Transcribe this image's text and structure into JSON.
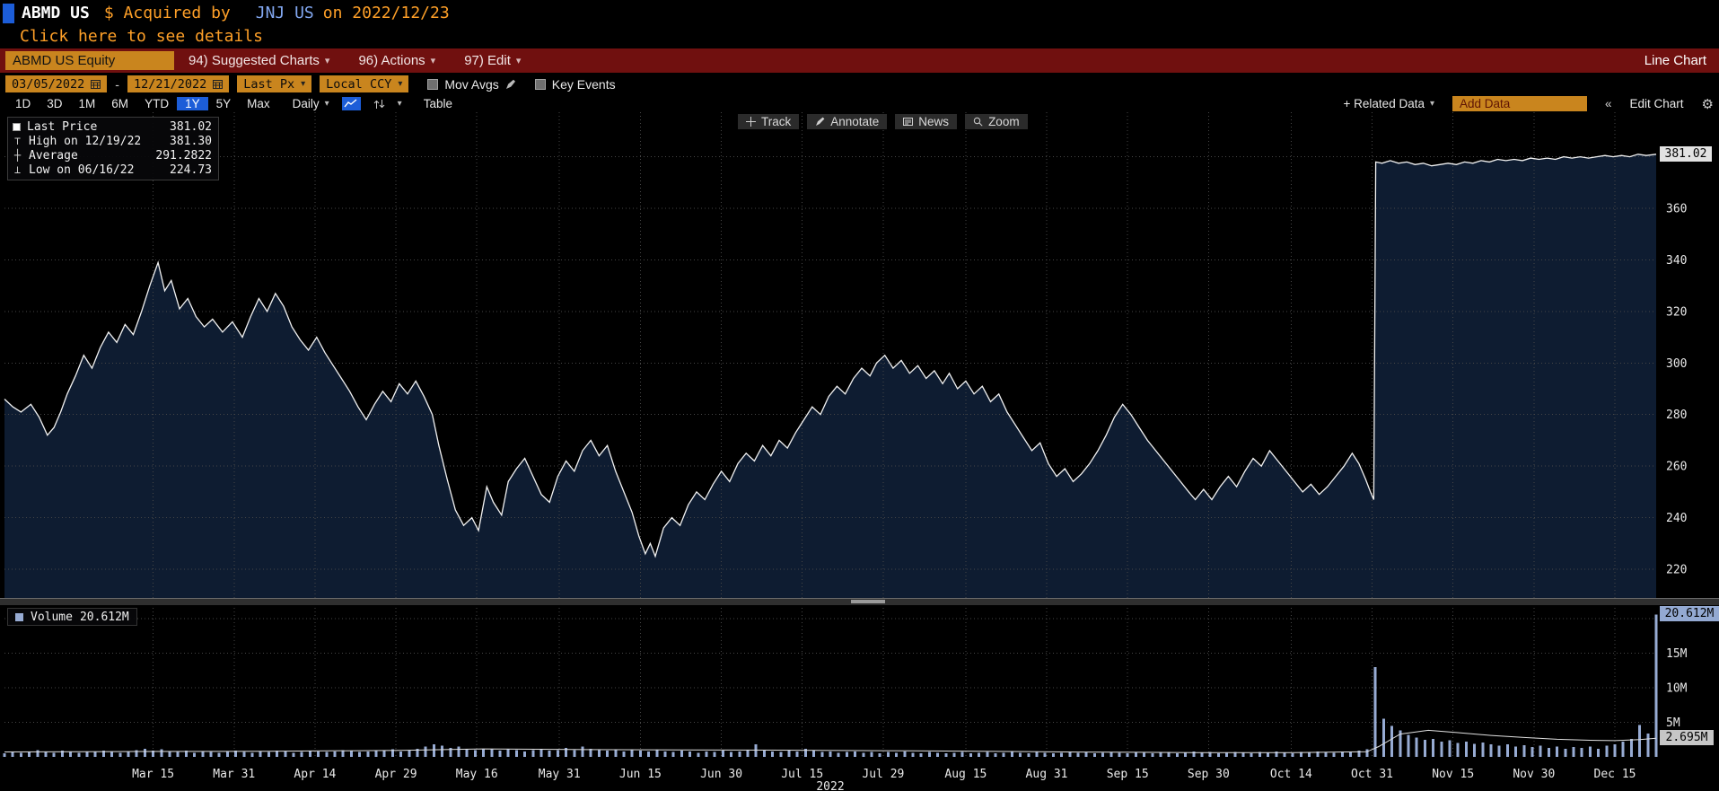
{
  "colors": {
    "amber": "#ffa028",
    "amber_field": "#c9851e",
    "accent_blue": "#1c5dd8",
    "link_blue": "#82a7f0",
    "toolbar_red": "#70100f",
    "area_fill": "#0e1c31",
    "price_line": "#f2f2f2",
    "volume_bar": "#97abd3",
    "grid": "#464646"
  },
  "title_bar": {
    "ticker": "ABMD US",
    "status_text": "$ Acquired by",
    "acquirer": "JNJ US",
    "date_text": "on 2022/12/23",
    "details_link": "Click here to see details"
  },
  "toolbar": {
    "security": "ABMD US Equity",
    "menus": [
      {
        "id": "suggested-charts",
        "label": "94) Suggested Charts"
      },
      {
        "id": "actions",
        "label": "96) Actions"
      },
      {
        "id": "edit",
        "label": "97) Edit"
      }
    ],
    "right_label": "Line Chart"
  },
  "controls": {
    "date_from": "03/05/2022",
    "date_to": "12/21/2022",
    "price_field": "Last Px",
    "currency": "Local CCY",
    "mov_avgs": "Mov Avgs",
    "key_events": "Key Events"
  },
  "period_bar": {
    "periods": [
      "1D",
      "3D",
      "1M",
      "6M",
      "YTD",
      "1Y",
      "5Y",
      "Max"
    ],
    "selected": "1Y",
    "frequency": "Daily",
    "table": "Table",
    "related_data": "+ Related Data",
    "add_data": "Add Data",
    "edit_chart": "Edit Chart"
  },
  "track_tools": [
    {
      "icon": "crosshair-icon",
      "label": "Track"
    },
    {
      "icon": "pencil-icon",
      "label": "Annotate"
    },
    {
      "icon": "news-icon",
      "label": "News"
    },
    {
      "icon": "magnifier-icon",
      "label": "Zoom"
    }
  ],
  "price_legend": [
    {
      "marker": "square",
      "label": "Last Price",
      "value": "381.02"
    },
    {
      "marker": "high",
      "label": "High on 12/19/22",
      "value": "381.30"
    },
    {
      "marker": "avg",
      "label": "Average",
      "value": "291.2822"
    },
    {
      "marker": "low",
      "label": "Low on 06/16/22",
      "value": "224.73"
    }
  ],
  "volume_legend": {
    "label": "Volume",
    "value": "20.612M"
  },
  "axis_callouts": {
    "last_price": "381.02",
    "volume_current": "20.612M",
    "volume_average": "2.695M"
  },
  "chart_data": {
    "type": "line",
    "title": "ABMD US Equity 1Y daily line chart with volume",
    "x_range": [
      "03/05/2022",
      "12/21/2022"
    ],
    "year_label": "2022",
    "x_labels": [
      {
        "f": 0.09,
        "t": "Mar 15"
      },
      {
        "f": 0.139,
        "t": "Mar 31"
      },
      {
        "f": 0.188,
        "t": "Apr 14"
      },
      {
        "f": 0.237,
        "t": "Apr 29"
      },
      {
        "f": 0.286,
        "t": "May 16"
      },
      {
        "f": 0.336,
        "t": "May 31"
      },
      {
        "f": 0.385,
        "t": "Jun 15"
      },
      {
        "f": 0.434,
        "t": "Jun 30"
      },
      {
        "f": 0.483,
        "t": "Jul 15"
      },
      {
        "f": 0.532,
        "t": "Jul 29"
      },
      {
        "f": 0.582,
        "t": "Aug 15"
      },
      {
        "f": 0.631,
        "t": "Aug 31"
      },
      {
        "f": 0.68,
        "t": "Sep 15"
      },
      {
        "f": 0.729,
        "t": "Sep 30"
      },
      {
        "f": 0.779,
        "t": "Oct 14"
      },
      {
        "f": 0.828,
        "t": "Oct 31"
      },
      {
        "f": 0.877,
        "t": "Nov 15"
      },
      {
        "f": 0.926,
        "t": "Nov 30"
      },
      {
        "f": 0.975,
        "t": "Dec 15"
      }
    ],
    "price": {
      "ylim": [
        213,
        386
      ],
      "ticks_labeled": [
        220,
        240,
        260,
        280,
        300,
        320,
        340,
        360
      ],
      "ticks_grid": [
        220,
        240,
        260,
        280,
        300,
        320,
        340,
        360,
        380
      ],
      "last": 381.02,
      "high": 381.3,
      "average": 291.2822,
      "low": 224.73,
      "points": [
        [
          0.0,
          286
        ],
        [
          0.005,
          283
        ],
        [
          0.01,
          281
        ],
        [
          0.016,
          284
        ],
        [
          0.021,
          279
        ],
        [
          0.026,
          272
        ],
        [
          0.03,
          275
        ],
        [
          0.034,
          281
        ],
        [
          0.038,
          288
        ],
        [
          0.043,
          295
        ],
        [
          0.048,
          303
        ],
        [
          0.053,
          298
        ],
        [
          0.058,
          306
        ],
        [
          0.063,
          312
        ],
        [
          0.068,
          308
        ],
        [
          0.073,
          315
        ],
        [
          0.078,
          311
        ],
        [
          0.083,
          320
        ],
        [
          0.088,
          330
        ],
        [
          0.093,
          339
        ],
        [
          0.097,
          328
        ],
        [
          0.101,
          332
        ],
        [
          0.106,
          321
        ],
        [
          0.111,
          325
        ],
        [
          0.116,
          318
        ],
        [
          0.121,
          314
        ],
        [
          0.126,
          317
        ],
        [
          0.132,
          312
        ],
        [
          0.138,
          316
        ],
        [
          0.144,
          310
        ],
        [
          0.149,
          318
        ],
        [
          0.154,
          325
        ],
        [
          0.159,
          320
        ],
        [
          0.164,
          327
        ],
        [
          0.169,
          322
        ],
        [
          0.174,
          314
        ],
        [
          0.179,
          309
        ],
        [
          0.184,
          305
        ],
        [
          0.189,
          310
        ],
        [
          0.194,
          304
        ],
        [
          0.199,
          299
        ],
        [
          0.204,
          294
        ],
        [
          0.209,
          289
        ],
        [
          0.214,
          283
        ],
        [
          0.219,
          278
        ],
        [
          0.224,
          284
        ],
        [
          0.229,
          289
        ],
        [
          0.234,
          285
        ],
        [
          0.239,
          292
        ],
        [
          0.244,
          288
        ],
        [
          0.249,
          293
        ],
        [
          0.254,
          287
        ],
        [
          0.259,
          280
        ],
        [
          0.263,
          268
        ],
        [
          0.268,
          255
        ],
        [
          0.273,
          243
        ],
        [
          0.278,
          237
        ],
        [
          0.283,
          240
        ],
        [
          0.287,
          235
        ],
        [
          0.292,
          252
        ],
        [
          0.296,
          246
        ],
        [
          0.301,
          241
        ],
        [
          0.305,
          254
        ],
        [
          0.31,
          259
        ],
        [
          0.315,
          263
        ],
        [
          0.32,
          256
        ],
        [
          0.325,
          249
        ],
        [
          0.33,
          246
        ],
        [
          0.335,
          256
        ],
        [
          0.34,
          262
        ],
        [
          0.345,
          258
        ],
        [
          0.35,
          266
        ],
        [
          0.355,
          270
        ],
        [
          0.36,
          264
        ],
        [
          0.365,
          268
        ],
        [
          0.37,
          258
        ],
        [
          0.375,
          250
        ],
        [
          0.38,
          242
        ],
        [
          0.384,
          233
        ],
        [
          0.388,
          226
        ],
        [
          0.391,
          230
        ],
        [
          0.394,
          225
        ],
        [
          0.399,
          236
        ],
        [
          0.404,
          240
        ],
        [
          0.409,
          237
        ],
        [
          0.414,
          245
        ],
        [
          0.419,
          250
        ],
        [
          0.424,
          247
        ],
        [
          0.429,
          253
        ],
        [
          0.434,
          258
        ],
        [
          0.439,
          254
        ],
        [
          0.444,
          261
        ],
        [
          0.449,
          265
        ],
        [
          0.454,
          262
        ],
        [
          0.459,
          268
        ],
        [
          0.464,
          264
        ],
        [
          0.469,
          270
        ],
        [
          0.474,
          267
        ],
        [
          0.479,
          273
        ],
        [
          0.484,
          278
        ],
        [
          0.489,
          283
        ],
        [
          0.494,
          280
        ],
        [
          0.499,
          287
        ],
        [
          0.504,
          291
        ],
        [
          0.509,
          288
        ],
        [
          0.514,
          294
        ],
        [
          0.519,
          298
        ],
        [
          0.524,
          295
        ],
        [
          0.528,
          300
        ],
        [
          0.533,
          303
        ],
        [
          0.538,
          298
        ],
        [
          0.543,
          301
        ],
        [
          0.548,
          296
        ],
        [
          0.553,
          299
        ],
        [
          0.558,
          294
        ],
        [
          0.563,
          297
        ],
        [
          0.568,
          292
        ],
        [
          0.572,
          296
        ],
        [
          0.577,
          290
        ],
        [
          0.582,
          293
        ],
        [
          0.587,
          288
        ],
        [
          0.592,
          291
        ],
        [
          0.597,
          285
        ],
        [
          0.602,
          288
        ],
        [
          0.607,
          281
        ],
        [
          0.612,
          276
        ],
        [
          0.617,
          271
        ],
        [
          0.622,
          266
        ],
        [
          0.627,
          269
        ],
        [
          0.632,
          261
        ],
        [
          0.637,
          256
        ],
        [
          0.642,
          259
        ],
        [
          0.647,
          254
        ],
        [
          0.652,
          257
        ],
        [
          0.657,
          261
        ],
        [
          0.662,
          266
        ],
        [
          0.667,
          272
        ],
        [
          0.672,
          279
        ],
        [
          0.677,
          284
        ],
        [
          0.682,
          280
        ],
        [
          0.687,
          275
        ],
        [
          0.692,
          270
        ],
        [
          0.697,
          266
        ],
        [
          0.702,
          262
        ],
        [
          0.707,
          258
        ],
        [
          0.712,
          254
        ],
        [
          0.717,
          250
        ],
        [
          0.721,
          247
        ],
        [
          0.726,
          251
        ],
        [
          0.731,
          247
        ],
        [
          0.736,
          252
        ],
        [
          0.741,
          256
        ],
        [
          0.746,
          252
        ],
        [
          0.751,
          258
        ],
        [
          0.756,
          263
        ],
        [
          0.761,
          260
        ],
        [
          0.766,
          266
        ],
        [
          0.771,
          262
        ],
        [
          0.776,
          258
        ],
        [
          0.781,
          254
        ],
        [
          0.786,
          250
        ],
        [
          0.791,
          253
        ],
        [
          0.796,
          249
        ],
        [
          0.801,
          252
        ],
        [
          0.806,
          256
        ],
        [
          0.811,
          260
        ],
        [
          0.816,
          265
        ],
        [
          0.82,
          261
        ],
        [
          0.824,
          255
        ],
        [
          0.827,
          250
        ],
        [
          0.829,
          247
        ],
        [
          0.8302,
          378
        ],
        [
          0.834,
          377.5
        ],
        [
          0.839,
          378.5
        ],
        [
          0.844,
          377.5
        ],
        [
          0.849,
          378
        ],
        [
          0.854,
          377
        ],
        [
          0.859,
          377.5
        ],
        [
          0.864,
          376.5
        ],
        [
          0.869,
          377
        ],
        [
          0.874,
          377.5
        ],
        [
          0.879,
          377
        ],
        [
          0.884,
          378
        ],
        [
          0.889,
          377.5
        ],
        [
          0.894,
          378.5
        ],
        [
          0.899,
          378
        ],
        [
          0.904,
          379
        ],
        [
          0.909,
          378.5
        ],
        [
          0.914,
          379
        ],
        [
          0.919,
          378.5
        ],
        [
          0.924,
          379.5
        ],
        [
          0.929,
          379
        ],
        [
          0.934,
          379.5
        ],
        [
          0.939,
          379
        ],
        [
          0.944,
          380
        ],
        [
          0.949,
          379.5
        ],
        [
          0.954,
          380
        ],
        [
          0.959,
          379.5
        ],
        [
          0.964,
          380
        ],
        [
          0.969,
          380.5
        ],
        [
          0.974,
          380
        ],
        [
          0.979,
          380.5
        ],
        [
          0.984,
          380
        ],
        [
          0.989,
          381
        ],
        [
          0.994,
          380.5
        ],
        [
          1.0,
          381
        ]
      ]
    },
    "volume": {
      "ticks": [
        {
          "value": 5,
          "label": "5M"
        },
        {
          "value": 10,
          "label": "10M"
        },
        {
          "value": 15,
          "label": "15M"
        }
      ],
      "grid": [
        5,
        10,
        15,
        20
      ],
      "current": 20.612,
      "average": 2.695,
      "step": 0.005,
      "values": [
        0.5,
        0.7,
        0.6,
        0.8,
        1.0,
        0.7,
        0.6,
        0.9,
        0.7,
        0.6,
        0.8,
        0.7,
        0.9,
        0.7,
        0.6,
        0.8,
        1.0,
        1.2,
        0.9,
        1.1,
        0.8,
        0.7,
        0.9,
        0.6,
        0.8,
        0.7,
        0.6,
        0.8,
        0.9,
        0.7,
        0.6,
        0.8,
        0.7,
        0.9,
        0.8,
        0.6,
        0.7,
        0.9,
        0.8,
        0.7,
        0.8,
        1.0,
        0.9,
        0.7,
        0.8,
        1.0,
        0.9,
        1.1,
        0.8,
        1.0,
        1.2,
        1.5,
        1.8,
        1.6,
        1.3,
        1.5,
        1.2,
        1.0,
        1.2,
        1.1,
        0.9,
        1.1,
        1.0,
        0.8,
        1.0,
        1.2,
        0.9,
        1.0,
        1.3,
        1.0,
        1.5,
        1.2,
        1.0,
        0.9,
        1.1,
        0.8,
        1.0,
        0.9,
        0.8,
        1.0,
        0.8,
        0.7,
        0.9,
        0.8,
        0.6,
        0.8,
        0.7,
        0.9,
        0.7,
        0.8,
        1.0,
        1.8,
        0.9,
        0.8,
        0.7,
        0.9,
        0.8,
        1.2,
        0.9,
        0.7,
        0.8,
        0.6,
        0.7,
        0.8,
        0.6,
        0.7,
        0.5,
        0.7,
        0.6,
        0.8,
        0.6,
        0.5,
        0.7,
        0.6,
        0.5,
        0.6,
        0.7,
        0.5,
        0.6,
        0.7,
        0.5,
        0.6,
        0.8,
        0.6,
        0.5,
        0.7,
        0.6,
        0.5,
        0.6,
        0.8,
        0.6,
        0.7,
        0.5,
        0.6,
        0.7,
        0.6,
        0.5,
        0.7,
        0.6,
        0.5,
        0.6,
        0.7,
        0.5,
        0.6,
        0.8,
        0.6,
        0.7,
        0.5,
        0.6,
        0.7,
        0.6,
        0.5,
        0.7,
        0.6,
        0.8,
        0.6,
        0.5,
        0.7,
        0.6,
        0.8,
        0.7,
        0.6,
        0.8,
        0.7,
        0.9,
        1.1,
        13.0,
        5.5,
        4.5,
        3.8,
        3.2,
        2.8,
        2.5,
        2.6,
        2.2,
        2.4,
        2.0,
        2.2,
        1.9,
        2.1,
        1.8,
        1.6,
        1.8,
        1.5,
        1.7,
        1.4,
        1.6,
        1.3,
        1.5,
        1.2,
        1.4,
        1.3,
        1.5,
        1.2,
        1.6,
        1.8,
        2.2,
        2.6,
        4.6,
        3.4,
        20.612
      ],
      "avg_line": [
        [
          0,
          0.72
        ],
        [
          0.08,
          0.78
        ],
        [
          0.16,
          0.8
        ],
        [
          0.24,
          0.95
        ],
        [
          0.29,
          1.15
        ],
        [
          0.35,
          1.05
        ],
        [
          0.41,
          1.0
        ],
        [
          0.47,
          0.98
        ],
        [
          0.53,
          0.9
        ],
        [
          0.59,
          0.82
        ],
        [
          0.65,
          0.7
        ],
        [
          0.72,
          0.62
        ],
        [
          0.78,
          0.62
        ],
        [
          0.825,
          0.75
        ],
        [
          0.832,
          1.5
        ],
        [
          0.845,
          3.3
        ],
        [
          0.862,
          3.85
        ],
        [
          0.88,
          3.5
        ],
        [
          0.9,
          3.1
        ],
        [
          0.92,
          2.8
        ],
        [
          0.94,
          2.55
        ],
        [
          0.96,
          2.4
        ],
        [
          0.975,
          2.35
        ],
        [
          0.99,
          2.5
        ],
        [
          1,
          2.695
        ]
      ]
    }
  }
}
